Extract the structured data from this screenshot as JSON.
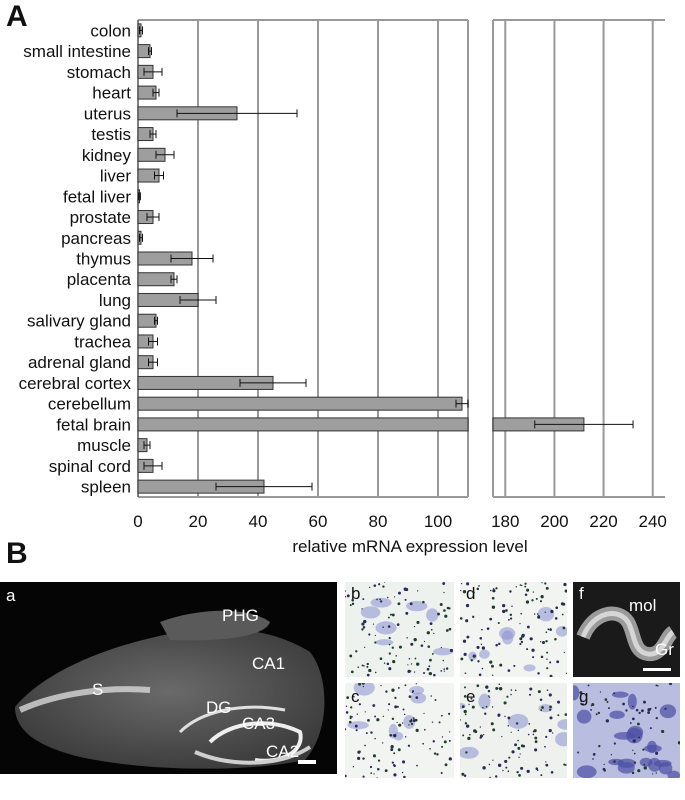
{
  "panels": {
    "a": "A",
    "b": "B"
  },
  "chart_data": {
    "type": "bar",
    "orientation": "horizontal",
    "xlabel": "relative mRNA expression level",
    "axis_break": {
      "left_range": [
        0,
        110
      ],
      "right_range": [
        175,
        245
      ]
    },
    "left_ticks": [
      0,
      20,
      40,
      60,
      80,
      100
    ],
    "right_ticks": [
      180,
      200,
      220,
      240
    ],
    "grid": true,
    "categories": [
      "colon",
      "small intestine",
      "stomach",
      "heart",
      "uterus",
      "testis",
      "kidney",
      "liver",
      "fetal liver",
      "prostate",
      "pancreas",
      "thymus",
      "placenta",
      "lung",
      "salivary gland",
      "trachea",
      "adrenal gland",
      "cerebral cortex",
      "cerebellum",
      "fetal brain",
      "muscle",
      "spinal cord",
      "spleen"
    ],
    "values": [
      1,
      4,
      5,
      6,
      33,
      5,
      9,
      7,
      0.5,
      5,
      1,
      18,
      12,
      20,
      6,
      5,
      5,
      45,
      108,
      212,
      3,
      5,
      42
    ],
    "errors": [
      0.5,
      0.5,
      3,
      1,
      20,
      1,
      3,
      1.5,
      0.3,
      2,
      0.5,
      7,
      1,
      6,
      0.5,
      1.5,
      1.5,
      11,
      2,
      20,
      1,
      3,
      16
    ]
  },
  "micrographs": {
    "a": {
      "letter": "a",
      "regions": [
        "PHG",
        "CA1",
        "S",
        "DG",
        "CA3",
        "CA2"
      ]
    },
    "b": {
      "letter": "b"
    },
    "c": {
      "letter": "c"
    },
    "d": {
      "letter": "d"
    },
    "e": {
      "letter": "e"
    },
    "f": {
      "letter": "f",
      "regions": [
        "mol",
        "Gr"
      ]
    },
    "g": {
      "letter": "g"
    }
  }
}
